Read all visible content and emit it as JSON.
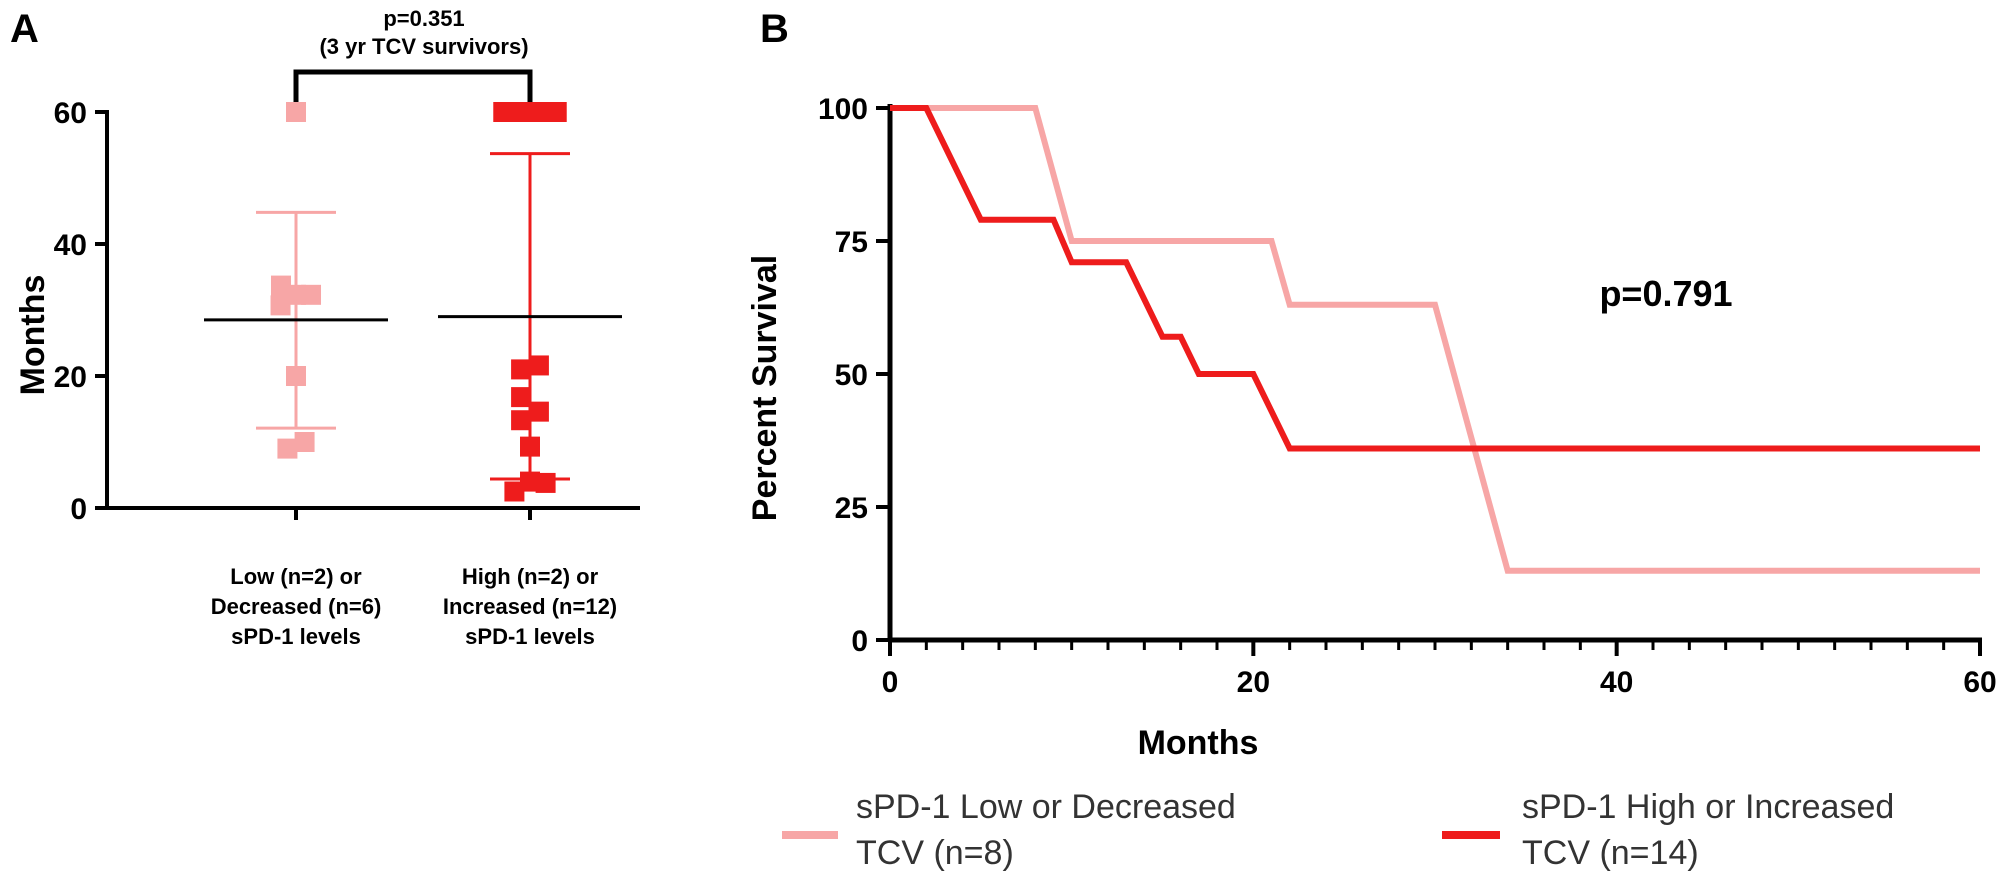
{
  "chart_data": [
    {
      "panel": "A",
      "type": "scatter",
      "ylabel": "Months",
      "ylim": [
        0,
        60
      ],
      "yticks": [
        "0",
        "20",
        "40",
        "60"
      ],
      "categories": [
        [
          "Low (n=2) or",
          "Decreased (n=6)",
          "sPD-1 levels"
        ],
        [
          "High (n=2) or",
          "Increased (n=12)",
          "sPD-1 levels"
        ]
      ],
      "comparison": {
        "line1": "p=0.351",
        "line2": "(3 yr TCV survivors)"
      },
      "series": [
        {
          "color": "#f7a6a6",
          "points": [
            {
              "dx": 0,
              "y": 60
            },
            {
              "dx": -0.35,
              "y": 33.7
            },
            {
              "dx": -0.36,
              "y": 30.7
            },
            {
              "dx": 0,
              "y": 32.3
            },
            {
              "dx": 0.35,
              "y": 32.3
            },
            {
              "dx": 0,
              "y": 20
            },
            {
              "dx": -0.2,
              "y": 9
            },
            {
              "dx": 0.2,
              "y": 10
            }
          ],
          "mean": 28.5,
          "sd_upper": 44.8,
          "sd_lower": 12.1
        },
        {
          "color": "#ee1c1c",
          "points": [
            {
              "dx": -0.6,
              "y": 60
            },
            {
              "dx": -0.3,
              "y": 60
            },
            {
              "dx": 0,
              "y": 60
            },
            {
              "dx": 0.3,
              "y": 60
            },
            {
              "dx": 0.6,
              "y": 60
            },
            {
              "dx": -0.2,
              "y": 21
            },
            {
              "dx": 0.2,
              "y": 21.6
            },
            {
              "dx": -0.2,
              "y": 16.8
            },
            {
              "dx": 0.2,
              "y": 14.6
            },
            {
              "dx": -0.2,
              "y": 13.3
            },
            {
              "dx": 0,
              "y": 9.3
            },
            {
              "dx": 0,
              "y": 4
            },
            {
              "dx": 0.35,
              "y": 3.8
            },
            {
              "dx": -0.35,
              "y": 2.5
            }
          ],
          "mean": 29,
          "sd_upper": 53.7,
          "sd_lower": 4.4
        }
      ]
    },
    {
      "panel": "B",
      "type": "line",
      "xlabel": "Months",
      "ylabel": "Percent Survival",
      "xlim": [
        0,
        60
      ],
      "ylim": [
        0,
        100
      ],
      "xticks": [
        "0",
        "20",
        "40",
        "60"
      ],
      "yticks": [
        "0",
        "25",
        "50",
        "75",
        "100"
      ],
      "annotation": "p=0.791",
      "series": [
        {
          "name": "sPD-1 Low or Decreased TCV (n=8)",
          "color": "#f7a6a6",
          "x": [
            0,
            8,
            10,
            21,
            22,
            30,
            34,
            60
          ],
          "y": [
            100,
            100,
            75,
            75,
            63,
            63,
            13,
            13
          ]
        },
        {
          "name": "sPD-1 High or Increased TCV (n=14)",
          "color": "#ee1c1c",
          "x": [
            0,
            2,
            5,
            9,
            10,
            13,
            15,
            16,
            17,
            20,
            22,
            60
          ],
          "y": [
            100,
            100,
            79,
            79,
            71,
            71,
            57,
            57,
            50,
            50,
            36,
            36
          ]
        }
      ]
    }
  ],
  "panel_labels": {
    "a": "A",
    "b": "B"
  },
  "legend": {
    "low_line1": "sPD-1 Low or Decreased",
    "low_line2": "TCV (n=8)",
    "high_line1": "sPD-1 High or Increased",
    "high_line2": "TCV (n=14)"
  }
}
